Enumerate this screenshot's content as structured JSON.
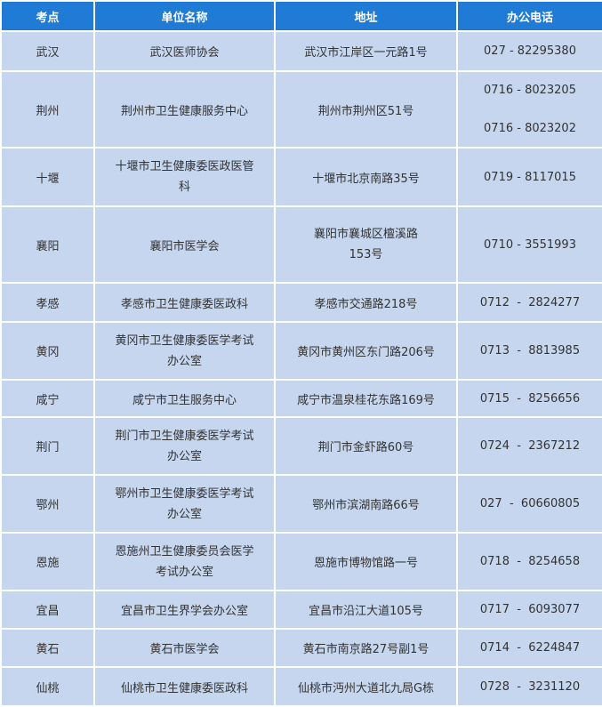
{
  "table": {
    "header": [
      "考点",
      "单位名称",
      "地址",
      "办公电话"
    ],
    "rows": [
      [
        "武汉",
        "武汉医师协会",
        "武汉市江岸区一元路1号",
        "027 - 82295380"
      ],
      [
        "荆州",
        "荆州市卫生健康服务中心",
        "荆州市荆州区51号",
        [
          "0716 - 8023205",
          "0716 - 8023202"
        ]
      ],
      [
        "十堰",
        [
          "十堰市卫生健康委医政医管",
          "科"
        ],
        "十堰市北京南路35号",
        "0719 - 8117015"
      ],
      [
        "襄阳",
        "襄阳市医学会",
        [
          "襄阳市襄城区檀溪路",
          "153号"
        ],
        "0710 - 3551993"
      ],
      [
        "孝感",
        "孝感市卫生健康委医政科",
        "孝感市交通路218号",
        "0712  -  2824277"
      ],
      [
        "黄冈",
        [
          "黄冈市卫生健康委医学考试",
          "办公室"
        ],
        "黄冈市黄州区东门路206号",
        "0713  -  8813985"
      ],
      [
        "咸宁",
        "咸宁市卫生服务中心",
        "咸宁市温泉桂花东路169号",
        "0715  -  8256656"
      ],
      [
        "荆门",
        [
          "荆门市卫生健康委医学考试",
          "办公室"
        ],
        "荆门市金虾路60号",
        "0724  -  2367212"
      ],
      [
        "鄂州",
        [
          "鄂州市卫生健康委医学考试",
          "办公室"
        ],
        "鄂州市滨湖南路66号",
        "027  -  60660805"
      ],
      [
        "恩施",
        [
          "恩施州卫生健康委员会医学",
          "考试办公室"
        ],
        "恩施市博物馆路一号",
        "0718  -  8254658"
      ],
      [
        "宜昌",
        "宜昌市卫生界学会办公室",
        "宜昌市沿江大道105号",
        "0717  -  6093077"
      ],
      [
        "黄石",
        "黄石市医学会",
        "黄石市南京路27号副1号",
        "0714  -  6224847"
      ],
      [
        "仙桃",
        "仙桃市卫生健康委医政科",
        "仙桃市沔州大道北九局G栋",
        "0728  -  3231120"
      ]
    ]
  }
}
